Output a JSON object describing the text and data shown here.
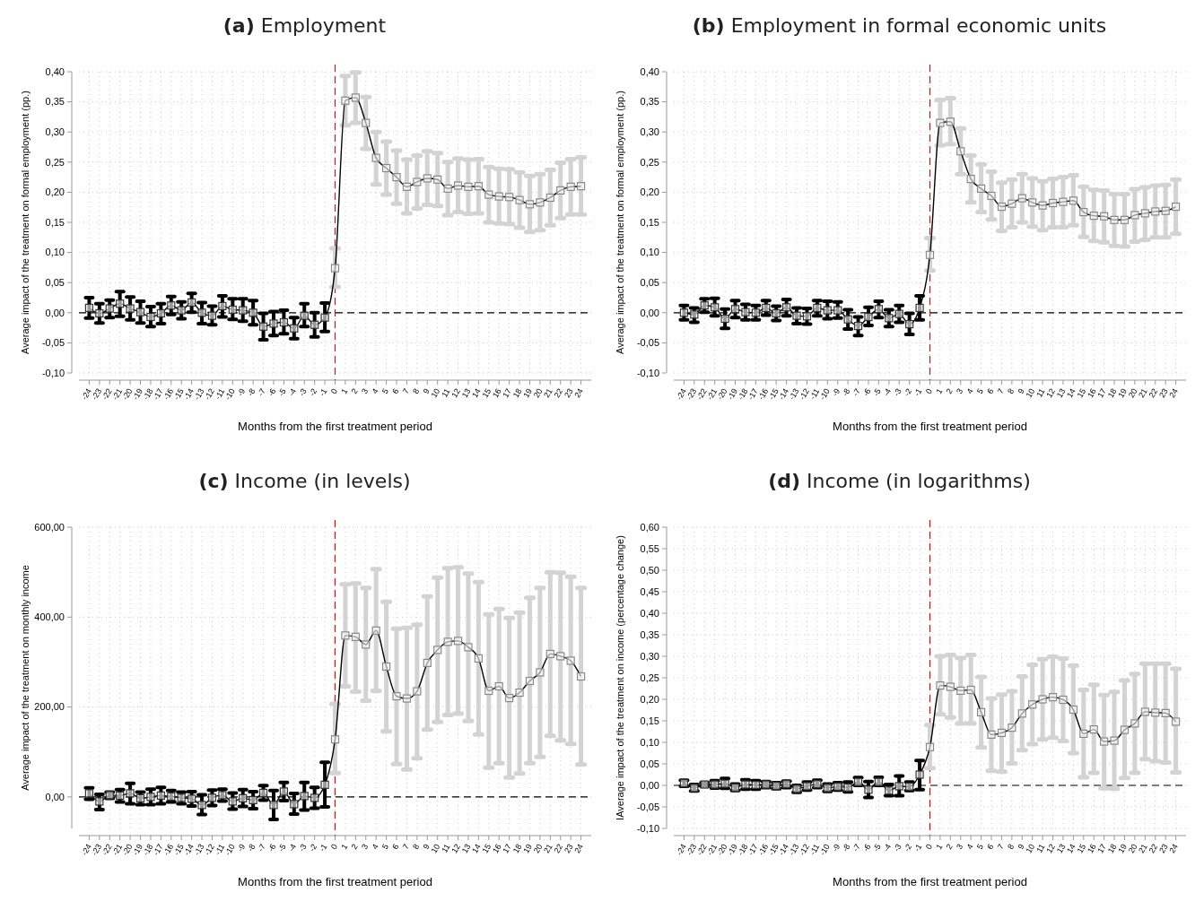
{
  "chart_data": [
    {
      "type": "line",
      "title": "(a) Employment",
      "xlabel": "Months from the first treatment period",
      "ylabel": "Average impact of the treatment on formal employment (pp.)",
      "x": [
        -24,
        -23,
        -22,
        -21,
        -20,
        -19,
        -18,
        -17,
        -16,
        -15,
        -14,
        -13,
        -12,
        -11,
        -10,
        -9,
        -8,
        -7,
        -6,
        -5,
        -4,
        -3,
        -2,
        -1,
        0,
        1,
        2,
        3,
        4,
        5,
        6,
        7,
        8,
        9,
        10,
        11,
        12,
        13,
        14,
        15,
        16,
        17,
        18,
        19,
        20,
        21,
        22,
        23,
        24
      ],
      "xlim": [
        -25,
        25
      ],
      "xticks": [
        -24,
        -23,
        -22,
        -21,
        -20,
        -19,
        -18,
        -17,
        -16,
        -15,
        -14,
        -13,
        -12,
        -11,
        -10,
        -9,
        -8,
        -7,
        -6,
        -5,
        -4,
        -3,
        -2,
        -1,
        0,
        1,
        2,
        3,
        4,
        5,
        6,
        7,
        8,
        9,
        10,
        11,
        12,
        13,
        14,
        15,
        16,
        17,
        18,
        19,
        20,
        21,
        22,
        23,
        24
      ],
      "ylim": [
        -0.1,
        0.4
      ],
      "yticks": [
        {
          "value": -0.1,
          "label": "-0,10"
        },
        {
          "value": -0.05,
          "label": "-0,05"
        },
        {
          "value": 0,
          "label": "0,00"
        },
        {
          "value": 0.05,
          "label": "0,05"
        },
        {
          "value": 0.1,
          "label": "0,10"
        },
        {
          "value": 0.15,
          "label": "0,15"
        },
        {
          "value": 0.2,
          "label": "0,20"
        },
        {
          "value": 0.25,
          "label": "0,25"
        },
        {
          "value": 0.3,
          "label": "0,30"
        },
        {
          "value": 0.35,
          "label": "0,35"
        },
        {
          "value": 0.4,
          "label": "0,40"
        }
      ],
      "grid": true,
      "marker": "square",
      "ref_lines": [
        {
          "axis": "x",
          "value": 0,
          "color": "#b22222",
          "line_style": "dashed"
        },
        {
          "axis": "y",
          "value": 0,
          "color": "#000000",
          "line_style": "dashed"
        }
      ],
      "series": [
        {
          "color": "#000000",
          "values": [
            0.008,
            -0.001,
            0.007,
            0.015,
            0.007,
            0.001,
            -0.007,
            -0.001,
            0.012,
            0.004,
            0.017,
            0.0,
            -0.005,
            0.011,
            0.005,
            0.004,
            0.0,
            -0.023,
            -0.018,
            -0.016,
            -0.026,
            -0.005,
            -0.02,
            -0.008,
            0.074,
            0.352,
            0.357,
            0.315,
            0.257,
            0.24,
            0.225,
            0.209,
            0.217,
            0.223,
            0.221,
            0.206,
            0.211,
            0.209,
            0.21,
            0.196,
            0.193,
            0.192,
            0.187,
            0.18,
            0.183,
            0.191,
            0.203,
            0.209,
            0.21
          ],
          "errors": [
            [
              -0.009,
              0.025
            ],
            [
              -0.017,
              0.015
            ],
            [
              -0.008,
              0.021
            ],
            [
              -0.006,
              0.035
            ],
            [
              -0.012,
              0.026
            ],
            [
              -0.017,
              0.019
            ],
            [
              -0.023,
              0.01
            ],
            [
              -0.018,
              0.015
            ],
            [
              -0.003,
              0.027
            ],
            [
              -0.01,
              0.018
            ],
            [
              0.001,
              0.032
            ],
            [
              -0.018,
              0.017
            ],
            [
              -0.02,
              0.011
            ],
            [
              -0.007,
              0.028
            ],
            [
              -0.011,
              0.023
            ],
            [
              -0.014,
              0.023
            ],
            [
              -0.02,
              0.02
            ],
            [
              -0.045,
              -0.001
            ],
            [
              -0.038,
              0.002
            ],
            [
              -0.035,
              0.004
            ],
            [
              -0.043,
              -0.008
            ],
            [
              -0.023,
              0.015
            ],
            [
              -0.04,
              0.0
            ],
            [
              -0.031,
              0.016
            ],
            [
              0.043,
              0.107
            ],
            [
              0.311,
              0.393
            ],
            [
              0.315,
              0.399
            ],
            [
              0.272,
              0.358
            ],
            [
              0.213,
              0.3
            ],
            [
              0.196,
              0.284
            ],
            [
              0.181,
              0.269
            ],
            [
              0.165,
              0.254
            ],
            [
              0.173,
              0.261
            ],
            [
              0.179,
              0.268
            ],
            [
              0.177,
              0.265
            ],
            [
              0.162,
              0.25
            ],
            [
              0.167,
              0.256
            ],
            [
              0.164,
              0.254
            ],
            [
              0.165,
              0.255
            ],
            [
              0.15,
              0.242
            ],
            [
              0.148,
              0.239
            ],
            [
              0.147,
              0.238
            ],
            [
              0.141,
              0.233
            ],
            [
              0.134,
              0.227
            ],
            [
              0.137,
              0.23
            ],
            [
              0.145,
              0.237
            ],
            [
              0.157,
              0.249
            ],
            [
              0.163,
              0.255
            ],
            [
              0.163,
              0.258
            ]
          ],
          "colors": [
            "#000000",
            "#000000",
            "#000000",
            "#000000",
            "#000000",
            "#000000",
            "#000000",
            "#000000",
            "#000000",
            "#000000",
            "#000000",
            "#000000",
            "#000000",
            "#000000",
            "#000000",
            "#000000",
            "#000000",
            "#000000",
            "#000000",
            "#000000",
            "#000000",
            "#000000",
            "#000000",
            "#000000",
            "#d3d3d3",
            "#d3d3d3",
            "#d3d3d3",
            "#d3d3d3",
            "#d3d3d3",
            "#d3d3d3",
            "#d3d3d3",
            "#d3d3d3",
            "#d3d3d3",
            "#d3d3d3",
            "#d3d3d3",
            "#d3d3d3",
            "#d3d3d3",
            "#d3d3d3",
            "#d3d3d3",
            "#d3d3d3",
            "#d3d3d3",
            "#d3d3d3",
            "#d3d3d3",
            "#d3d3d3",
            "#d3d3d3",
            "#d3d3d3",
            "#d3d3d3",
            "#d3d3d3",
            "#d3d3d3"
          ]
        }
      ]
    },
    {
      "type": "line",
      "title": "(b) Employment in formal economic units",
      "xlabel": "Months from the first treatment period",
      "ylabel": "Average impact of the treatment on formal employment (pp.)",
      "x": [
        -24,
        -23,
        -22,
        -21,
        -20,
        -19,
        -18,
        -17,
        -16,
        -15,
        -14,
        -13,
        -12,
        -11,
        -10,
        -9,
        -8,
        -7,
        -6,
        -5,
        -4,
        -3,
        -2,
        -1,
        0,
        1,
        2,
        3,
        4,
        5,
        6,
        7,
        8,
        9,
        10,
        11,
        12,
        13,
        14,
        15,
        16,
        17,
        18,
        19,
        20,
        21,
        22,
        23,
        24
      ],
      "xlim": [
        -25,
        25
      ],
      "xticks": [
        -24,
        -23,
        -22,
        -21,
        -20,
        -19,
        -18,
        -17,
        -16,
        -15,
        -14,
        -13,
        -12,
        -11,
        -10,
        -9,
        -8,
        -7,
        -6,
        -5,
        -4,
        -3,
        -2,
        -1,
        0,
        1,
        2,
        3,
        4,
        5,
        6,
        7,
        8,
        9,
        10,
        11,
        12,
        13,
        14,
        15,
        16,
        17,
        18,
        19,
        20,
        21,
        22,
        23,
        24
      ],
      "ylim": [
        -0.1,
        0.4
      ],
      "yticks": [
        {
          "value": -0.1,
          "label": "-0,10"
        },
        {
          "value": -0.05,
          "label": "-0,05"
        },
        {
          "value": 0,
          "label": "0,00"
        },
        {
          "value": 0.05,
          "label": "0,05"
        },
        {
          "value": 0.1,
          "label": "0,10"
        },
        {
          "value": 0.15,
          "label": "0,15"
        },
        {
          "value": 0.2,
          "label": "0,20"
        },
        {
          "value": 0.25,
          "label": "0,25"
        },
        {
          "value": 0.3,
          "label": "0,30"
        },
        {
          "value": 0.35,
          "label": "0,35"
        },
        {
          "value": 0.4,
          "label": "0,40"
        }
      ],
      "grid": true,
      "marker": "square",
      "ref_lines": [
        {
          "axis": "x",
          "value": 0,
          "color": "#b22222",
          "line_style": "dashed"
        },
        {
          "axis": "y",
          "value": 0,
          "color": "#000000",
          "line_style": "dashed"
        }
      ],
      "series": [
        {
          "color": "#000000",
          "values": [
            0.0,
            -0.003,
            0.012,
            0.009,
            -0.01,
            0.006,
            0.001,
            0.0,
            0.008,
            -0.001,
            0.009,
            -0.005,
            -0.006,
            0.008,
            0.004,
            0.004,
            -0.011,
            -0.022,
            -0.007,
            0.006,
            -0.009,
            -0.002,
            -0.019,
            0.008,
            0.096,
            0.315,
            0.317,
            0.268,
            0.222,
            0.206,
            0.194,
            0.176,
            0.181,
            0.19,
            0.183,
            0.178,
            0.182,
            0.184,
            0.186,
            0.167,
            0.161,
            0.16,
            0.154,
            0.154,
            0.162,
            0.165,
            0.168,
            0.169,
            0.176
          ],
          "errors": [
            [
              -0.012,
              0.012
            ],
            [
              -0.016,
              0.008
            ],
            [
              0.001,
              0.023
            ],
            [
              -0.005,
              0.024
            ],
            [
              -0.026,
              0.006
            ],
            [
              -0.008,
              0.02
            ],
            [
              -0.012,
              0.014
            ],
            [
              -0.012,
              0.012
            ],
            [
              -0.004,
              0.02
            ],
            [
              -0.013,
              0.011
            ],
            [
              -0.005,
              0.022
            ],
            [
              -0.018,
              0.008
            ],
            [
              -0.019,
              0.007
            ],
            [
              -0.005,
              0.02
            ],
            [
              -0.01,
              0.019
            ],
            [
              -0.009,
              0.018
            ],
            [
              -0.027,
              0.005
            ],
            [
              -0.038,
              -0.007
            ],
            [
              -0.021,
              0.009
            ],
            [
              -0.008,
              0.019
            ],
            [
              -0.023,
              0.005
            ],
            [
              -0.016,
              0.012
            ],
            [
              -0.036,
              -0.001
            ],
            [
              -0.012,
              0.028
            ],
            [
              0.07,
              0.124
            ],
            [
              0.278,
              0.353
            ],
            [
              0.28,
              0.356
            ],
            [
              0.23,
              0.306
            ],
            [
              0.183,
              0.261
            ],
            [
              0.167,
              0.246
            ],
            [
              0.155,
              0.234
            ],
            [
              0.136,
              0.216
            ],
            [
              0.142,
              0.221
            ],
            [
              0.15,
              0.23
            ],
            [
              0.143,
              0.223
            ],
            [
              0.137,
              0.218
            ],
            [
              0.142,
              0.222
            ],
            [
              0.142,
              0.225
            ],
            [
              0.145,
              0.228
            ],
            [
              0.126,
              0.209
            ],
            [
              0.119,
              0.204
            ],
            [
              0.117,
              0.203
            ],
            [
              0.111,
              0.197
            ],
            [
              0.11,
              0.197
            ],
            [
              0.118,
              0.205
            ],
            [
              0.121,
              0.208
            ],
            [
              0.125,
              0.211
            ],
            [
              0.125,
              0.212
            ],
            [
              0.131,
              0.221
            ]
          ],
          "colors": [
            "#000000",
            "#000000",
            "#000000",
            "#000000",
            "#000000",
            "#000000",
            "#000000",
            "#000000",
            "#000000",
            "#000000",
            "#000000",
            "#000000",
            "#000000",
            "#000000",
            "#000000",
            "#000000",
            "#000000",
            "#000000",
            "#000000",
            "#000000",
            "#000000",
            "#000000",
            "#000000",
            "#000000",
            "#d3d3d3",
            "#d3d3d3",
            "#d3d3d3",
            "#d3d3d3",
            "#d3d3d3",
            "#d3d3d3",
            "#d3d3d3",
            "#d3d3d3",
            "#d3d3d3",
            "#d3d3d3",
            "#d3d3d3",
            "#d3d3d3",
            "#d3d3d3",
            "#d3d3d3",
            "#d3d3d3",
            "#d3d3d3",
            "#d3d3d3",
            "#d3d3d3",
            "#d3d3d3",
            "#d3d3d3",
            "#d3d3d3",
            "#d3d3d3",
            "#d3d3d3",
            "#d3d3d3",
            "#d3d3d3"
          ]
        }
      ]
    },
    {
      "type": "line",
      "title": "(c) Income (in levels)",
      "xlabel": "Months from the first treatment period",
      "ylabel": "Average impact of the treatment on monthly income",
      "x": [
        -24,
        -23,
        -22,
        -21,
        -20,
        -19,
        -18,
        -17,
        -16,
        -15,
        -14,
        -13,
        -12,
        -11,
        -10,
        -9,
        -8,
        -7,
        -6,
        -5,
        -4,
        -3,
        -2,
        -1,
        0,
        1,
        2,
        3,
        4,
        5,
        6,
        7,
        8,
        9,
        10,
        11,
        12,
        13,
        14,
        15,
        16,
        17,
        18,
        19,
        20,
        21,
        22,
        23,
        24
      ],
      "xlim": [
        -25,
        25
      ],
      "xticks": [
        -24,
        -23,
        -22,
        -21,
        -20,
        -19,
        -18,
        -17,
        -16,
        -15,
        -14,
        -13,
        -12,
        -11,
        -10,
        -9,
        -8,
        -7,
        -6,
        -5,
        -4,
        -3,
        -2,
        -1,
        0,
        1,
        2,
        3,
        4,
        5,
        6,
        7,
        8,
        9,
        10,
        11,
        12,
        13,
        14,
        15,
        16,
        17,
        18,
        19,
        20,
        21,
        22,
        23,
        24
      ],
      "ylim": [
        -70,
        600
      ],
      "yticks": [
        {
          "value": 0,
          "label": "0,00"
        },
        {
          "value": 200,
          "label": "200,00"
        },
        {
          "value": 400,
          "label": "400,00"
        },
        {
          "value": 600,
          "label": "600,00"
        }
      ],
      "grid": true,
      "marker": "square",
      "ref_lines": [
        {
          "axis": "x",
          "value": 0,
          "color": "#ff0000",
          "line_style": "dashed"
        },
        {
          "axis": "y",
          "value": 0,
          "color": "#000000",
          "line_style": "dashed"
        }
      ],
      "series": [
        {
          "color": "#000000",
          "values": [
            8,
            -10,
            4,
            3,
            8,
            -3,
            0,
            3,
            1,
            -2,
            -4,
            -18,
            -2,
            4,
            -10,
            -3,
            -7,
            9,
            -18,
            12,
            -16,
            2,
            -2,
            27,
            128,
            359,
            356,
            339,
            370,
            290,
            224,
            219,
            235,
            298,
            327,
            345,
            347,
            333,
            308,
            236,
            246,
            220,
            232,
            258,
            277,
            318,
            313,
            303,
            268
          ],
          "errors": [
            [
              -5,
              20
            ],
            [
              -28,
              6
            ],
            [
              -3,
              11
            ],
            [
              -11,
              16
            ],
            [
              -15,
              30
            ],
            [
              -17,
              11
            ],
            [
              -17,
              17
            ],
            [
              -15,
              21
            ],
            [
              -11,
              14
            ],
            [
              -15,
              11
            ],
            [
              -20,
              12
            ],
            [
              -39,
              5
            ],
            [
              -19,
              15
            ],
            [
              -9,
              17
            ],
            [
              -27,
              9
            ],
            [
              -21,
              16
            ],
            [
              -26,
              12
            ],
            [
              -7,
              25
            ],
            [
              -50,
              14
            ],
            [
              -8,
              32
            ],
            [
              -38,
              8
            ],
            [
              -29,
              32
            ],
            [
              -25,
              21
            ],
            [
              -22,
              77
            ],
            [
              53,
              207
            ],
            [
              246,
              473
            ],
            [
              234,
              475
            ],
            [
              214,
              465
            ],
            [
              236,
              507
            ],
            [
              146,
              434
            ],
            [
              73,
              374
            ],
            [
              61,
              376
            ],
            [
              86,
              383
            ],
            [
              150,
              446
            ],
            [
              167,
              488
            ],
            [
              182,
              509
            ],
            [
              185,
              511
            ],
            [
              169,
              497
            ],
            [
              139,
              478
            ],
            [
              65,
              406
            ],
            [
              75,
              418
            ],
            [
              43,
              398
            ],
            [
              52,
              410
            ],
            [
              75,
              443
            ],
            [
              89,
              465
            ],
            [
              136,
              500
            ],
            [
              126,
              499
            ],
            [
              118,
              490
            ],
            [
              72,
              465
            ]
          ],
          "colors": [
            "#000000",
            "#000000",
            "#000000",
            "#000000",
            "#000000",
            "#000000",
            "#000000",
            "#000000",
            "#000000",
            "#000000",
            "#000000",
            "#000000",
            "#000000",
            "#000000",
            "#000000",
            "#000000",
            "#000000",
            "#000000",
            "#000000",
            "#000000",
            "#000000",
            "#000000",
            "#000000",
            "#000000",
            "#d3d3d3",
            "#d3d3d3",
            "#d3d3d3",
            "#d3d3d3",
            "#d3d3d3",
            "#d3d3d3",
            "#d3d3d3",
            "#d3d3d3",
            "#d3d3d3",
            "#d3d3d3",
            "#d3d3d3",
            "#d3d3d3",
            "#d3d3d3",
            "#d3d3d3",
            "#d3d3d3",
            "#d3d3d3",
            "#d3d3d3",
            "#d3d3d3",
            "#d3d3d3",
            "#d3d3d3",
            "#d3d3d3",
            "#d3d3d3",
            "#d3d3d3",
            "#d3d3d3",
            "#d3d3d3"
          ]
        }
      ]
    },
    {
      "type": "line",
      "title": "(d) Income (in logarithms)",
      "xlabel": "Months from the first treatment period",
      "ylabel": "IAverage impact of the treatment on income (percentage change)",
      "x": [
        -24,
        -23,
        -22,
        -21,
        -20,
        -19,
        -18,
        -17,
        -16,
        -15,
        -14,
        -13,
        -12,
        -11,
        -10,
        -9,
        -8,
        -7,
        -6,
        -5,
        -4,
        -3,
        -2,
        -1,
        0,
        1,
        2,
        3,
        4,
        5,
        6,
        7,
        8,
        9,
        10,
        11,
        12,
        13,
        14,
        15,
        16,
        17,
        18,
        19,
        20,
        21,
        22,
        23,
        24
      ],
      "xlim": [
        -25,
        25
      ],
      "xticks": [
        -24,
        -23,
        -22,
        -21,
        -20,
        -19,
        -18,
        -17,
        -16,
        -15,
        -14,
        -13,
        -12,
        -11,
        -10,
        -9,
        -8,
        -7,
        -6,
        -5,
        -4,
        -3,
        -2,
        -1,
        0,
        1,
        2,
        3,
        4,
        5,
        6,
        7,
        8,
        9,
        10,
        11,
        12,
        13,
        14,
        15,
        16,
        17,
        18,
        19,
        20,
        21,
        22,
        23,
        24
      ],
      "ylim": [
        -0.1,
        0.6
      ],
      "yticks": [
        {
          "value": -0.1,
          "label": "-0,10"
        },
        {
          "value": -0.05,
          "label": "-0,05"
        },
        {
          "value": 0,
          "label": "0,00"
        },
        {
          "value": 0.05,
          "label": "0,05"
        },
        {
          "value": 0.1,
          "label": "0,10"
        },
        {
          "value": 0.15,
          "label": "0,15"
        },
        {
          "value": 0.2,
          "label": "0,20"
        },
        {
          "value": 0.25,
          "label": "0,25"
        },
        {
          "value": 0.3,
          "label": "0,30"
        },
        {
          "value": 0.35,
          "label": "0,35"
        },
        {
          "value": 0.4,
          "label": "0,40"
        },
        {
          "value": 0.45,
          "label": "0,45"
        },
        {
          "value": 0.5,
          "label": "0,50"
        },
        {
          "value": 0.55,
          "label": "0,55"
        },
        {
          "value": 0.6,
          "label": "0,60"
        }
      ],
      "grid": true,
      "marker": "square",
      "ref_lines": [
        {
          "axis": "x",
          "value": 0,
          "color": "#ff0000",
          "line_style": "dashed"
        },
        {
          "axis": "y",
          "value": 0,
          "color": "#000000",
          "line_style": "dashed"
        }
      ],
      "series": [
        {
          "color": "#000000",
          "values": [
            0.005,
            -0.006,
            0.002,
            0.002,
            0.004,
            -0.005,
            0.002,
            0.001,
            0.002,
            -0.001,
            0.003,
            -0.008,
            -0.002,
            0.003,
            -0.006,
            -0.003,
            -0.005,
            0.008,
            -0.01,
            0.008,
            -0.012,
            -0.002,
            -0.003,
            0.025,
            0.089,
            0.232,
            0.229,
            0.22,
            0.222,
            0.17,
            0.118,
            0.122,
            0.134,
            0.167,
            0.188,
            0.2,
            0.205,
            0.199,
            0.176,
            0.12,
            0.13,
            0.102,
            0.104,
            0.129,
            0.144,
            0.171,
            0.169,
            0.168,
            0.148
          ],
          "errors": [
            [
              -0.002,
              0.012
            ],
            [
              -0.013,
              0.002
            ],
            [
              -0.002,
              0.006
            ],
            [
              -0.006,
              0.011
            ],
            [
              -0.007,
              0.016
            ],
            [
              -0.012,
              0.003
            ],
            [
              -0.009,
              0.013
            ],
            [
              -0.009,
              0.011
            ],
            [
              -0.005,
              0.009
            ],
            [
              -0.008,
              0.006
            ],
            [
              -0.005,
              0.01
            ],
            [
              -0.016,
              0.0
            ],
            [
              -0.011,
              0.008
            ],
            [
              -0.005,
              0.012
            ],
            [
              -0.014,
              0.003
            ],
            [
              -0.011,
              0.006
            ],
            [
              -0.015,
              0.008
            ],
            [
              0.0,
              0.018
            ],
            [
              -0.028,
              0.009
            ],
            [
              0.0,
              0.019
            ],
            [
              -0.024,
              0.002
            ],
            [
              -0.024,
              0.022
            ],
            [
              -0.012,
              0.008
            ],
            [
              -0.01,
              0.058
            ],
            [
              0.04,
              0.14
            ],
            [
              0.165,
              0.3
            ],
            [
              0.158,
              0.303
            ],
            [
              0.144,
              0.296
            ],
            [
              0.144,
              0.303
            ],
            [
              0.088,
              0.252
            ],
            [
              0.034,
              0.202
            ],
            [
              0.032,
              0.211
            ],
            [
              0.051,
              0.219
            ],
            [
              0.082,
              0.253
            ],
            [
              0.096,
              0.28
            ],
            [
              0.107,
              0.293
            ],
            [
              0.111,
              0.299
            ],
            [
              0.103,
              0.295
            ],
            [
              0.075,
              0.278
            ],
            [
              0.019,
              0.222
            ],
            [
              0.029,
              0.234
            ],
            [
              -0.007,
              0.21
            ],
            [
              -0.008,
              0.217
            ],
            [
              0.017,
              0.244
            ],
            [
              0.029,
              0.259
            ],
            [
              0.061,
              0.283
            ],
            [
              0.056,
              0.283
            ],
            [
              0.053,
              0.283
            ],
            [
              0.03,
              0.271
            ]
          ],
          "colors": [
            "#000000",
            "#000000",
            "#000000",
            "#000000",
            "#000000",
            "#000000",
            "#000000",
            "#000000",
            "#000000",
            "#000000",
            "#000000",
            "#000000",
            "#000000",
            "#000000",
            "#000000",
            "#000000",
            "#000000",
            "#000000",
            "#000000",
            "#000000",
            "#000000",
            "#000000",
            "#000000",
            "#000000",
            "#d3d3d3",
            "#d3d3d3",
            "#d3d3d3",
            "#d3d3d3",
            "#d3d3d3",
            "#d3d3d3",
            "#d3d3d3",
            "#d3d3d3",
            "#d3d3d3",
            "#d3d3d3",
            "#d3d3d3",
            "#d3d3d3",
            "#d3d3d3",
            "#d3d3d3",
            "#d3d3d3",
            "#d3d3d3",
            "#d3d3d3",
            "#d3d3d3",
            "#d3d3d3",
            "#d3d3d3",
            "#d3d3d3",
            "#d3d3d3",
            "#d3d3d3",
            "#d3d3d3",
            "#d3d3d3"
          ]
        }
      ]
    }
  ]
}
